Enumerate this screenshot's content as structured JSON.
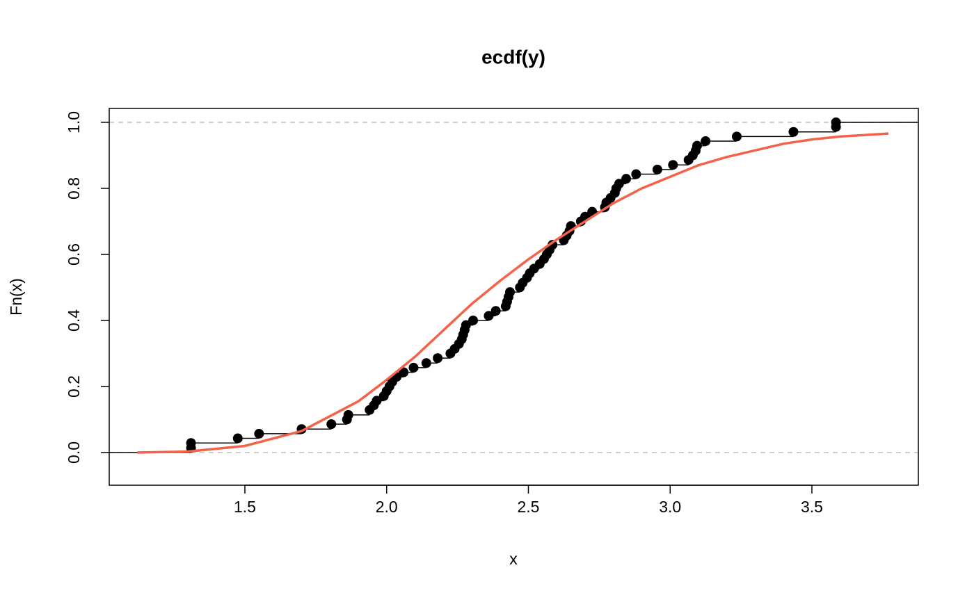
{
  "chart_data": {
    "type": "ecdf",
    "title": "ecdf(y)",
    "x_label": "x",
    "y_label": "Fn(x)",
    "xlim": [
      1.0215,
      3.8755
    ],
    "ylim": [
      -0.099,
      1.042
    ],
    "xticks": [
      1.5,
      {
        "value": 2,
        "label": "2.0"
      },
      2.5,
      {
        "value": 3,
        "label": "3.0"
      },
      3.5
    ],
    "yticks": [
      {
        "value": 0,
        "label": "0.0"
      },
      0.2,
      0.4,
      0.6,
      0.8,
      {
        "value": 1,
        "label": "1.0"
      }
    ],
    "reference_lines": [
      0,
      1
    ],
    "reference_color": "#bebebe",
    "series": [
      {
        "kind": "steps",
        "color": "#000000",
        "x": [
          1.31,
          1.31,
          1.475,
          1.55,
          1.7,
          1.805,
          1.86,
          1.865,
          1.94,
          1.955,
          1.965,
          1.99,
          2.0,
          2.01,
          2.02,
          2.035,
          2.06,
          2.095,
          2.14,
          2.18,
          2.225,
          2.24,
          2.255,
          2.265,
          2.27,
          2.275,
          2.28,
          2.305,
          2.36,
          2.385,
          2.42,
          2.425,
          2.43,
          2.435,
          2.47,
          2.48,
          2.495,
          2.505,
          2.52,
          2.54,
          2.555,
          2.565,
          2.575,
          2.585,
          2.625,
          2.635,
          2.645,
          2.65,
          2.685,
          2.7,
          2.725,
          2.77,
          2.775,
          2.79,
          2.805,
          2.81,
          2.82,
          2.845,
          2.88,
          2.955,
          3.01,
          3.065,
          3.08,
          3.09,
          3.095,
          3.125,
          3.235,
          3.435,
          3.585,
          3.585
        ],
        "values": [
          0.014,
          0.029,
          0.043,
          0.057,
          0.071,
          0.086,
          0.1,
          0.114,
          0.129,
          0.143,
          0.157,
          0.171,
          0.186,
          0.2,
          0.214,
          0.229,
          0.243,
          0.257,
          0.271,
          0.286,
          0.3,
          0.314,
          0.329,
          0.343,
          0.357,
          0.371,
          0.386,
          0.4,
          0.414,
          0.429,
          0.443,
          0.457,
          0.471,
          0.486,
          0.5,
          0.514,
          0.529,
          0.543,
          0.557,
          0.571,
          0.586,
          0.6,
          0.614,
          0.629,
          0.643,
          0.657,
          0.671,
          0.686,
          0.7,
          0.714,
          0.729,
          0.743,
          0.757,
          0.771,
          0.786,
          0.8,
          0.814,
          0.829,
          0.843,
          0.857,
          0.871,
          0.886,
          0.9,
          0.914,
          0.929,
          0.943,
          0.957,
          0.971,
          0.986,
          1
        ]
      },
      {
        "kind": "curve",
        "color": "#f4624a",
        "x": [
          1.12,
          1.3,
          1.5,
          1.7,
          1.9,
          2.0,
          2.1,
          2.2,
          2.3,
          2.4,
          2.5,
          2.6,
          2.7,
          2.8,
          2.9,
          3.0,
          3.1,
          3.2,
          3.3,
          3.4,
          3.5,
          3.6,
          3.77
        ],
        "values": [
          0,
          0.003,
          0.02,
          0.065,
          0.155,
          0.22,
          0.29,
          0.37,
          0.45,
          0.52,
          0.585,
          0.645,
          0.7,
          0.755,
          0.8,
          0.835,
          0.87,
          0.895,
          0.915,
          0.935,
          0.948,
          0.957,
          0.966
        ]
      }
    ]
  }
}
